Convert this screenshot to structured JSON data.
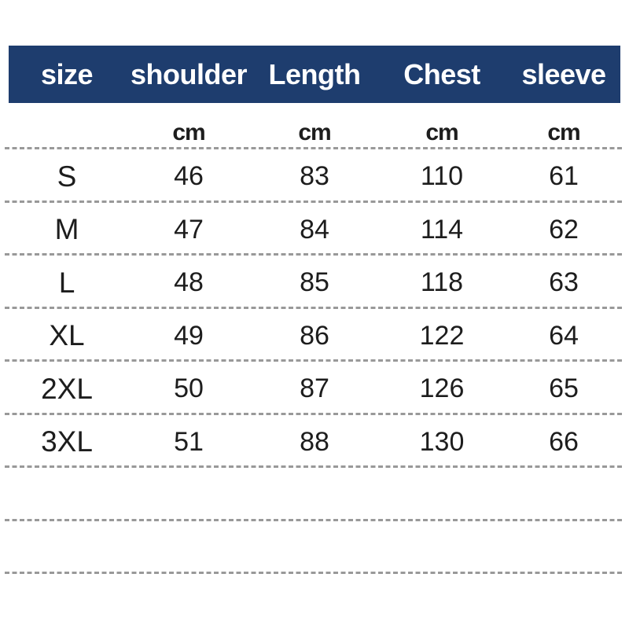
{
  "chart_data": {
    "type": "table",
    "title": "",
    "columns": [
      "size",
      "shoulder",
      "Length",
      "Chest",
      "sleeve"
    ],
    "units": [
      "",
      "cm",
      "cm",
      "cm",
      "cm"
    ],
    "rows": [
      [
        "S",
        "46",
        "83",
        "110",
        "61"
      ],
      [
        "M",
        "47",
        "84",
        "114",
        "62"
      ],
      [
        "L",
        "48",
        "85",
        "118",
        "63"
      ],
      [
        "XL",
        "49",
        "86",
        "122",
        "64"
      ],
      [
        "2XL",
        "50",
        "87",
        "126",
        "65"
      ],
      [
        "3XL",
        "51",
        "88",
        "130",
        "66"
      ]
    ],
    "empty_trailing_rows": 2,
    "layout_hints": {
      "separator_style": "dashed",
      "header_position": "top"
    }
  },
  "colors": {
    "header_bg": "#1e3d6e",
    "header_text": "#ffffff",
    "body_text": "#1d1d1d",
    "dash_line": "#999999",
    "background": "#ffffff"
  }
}
